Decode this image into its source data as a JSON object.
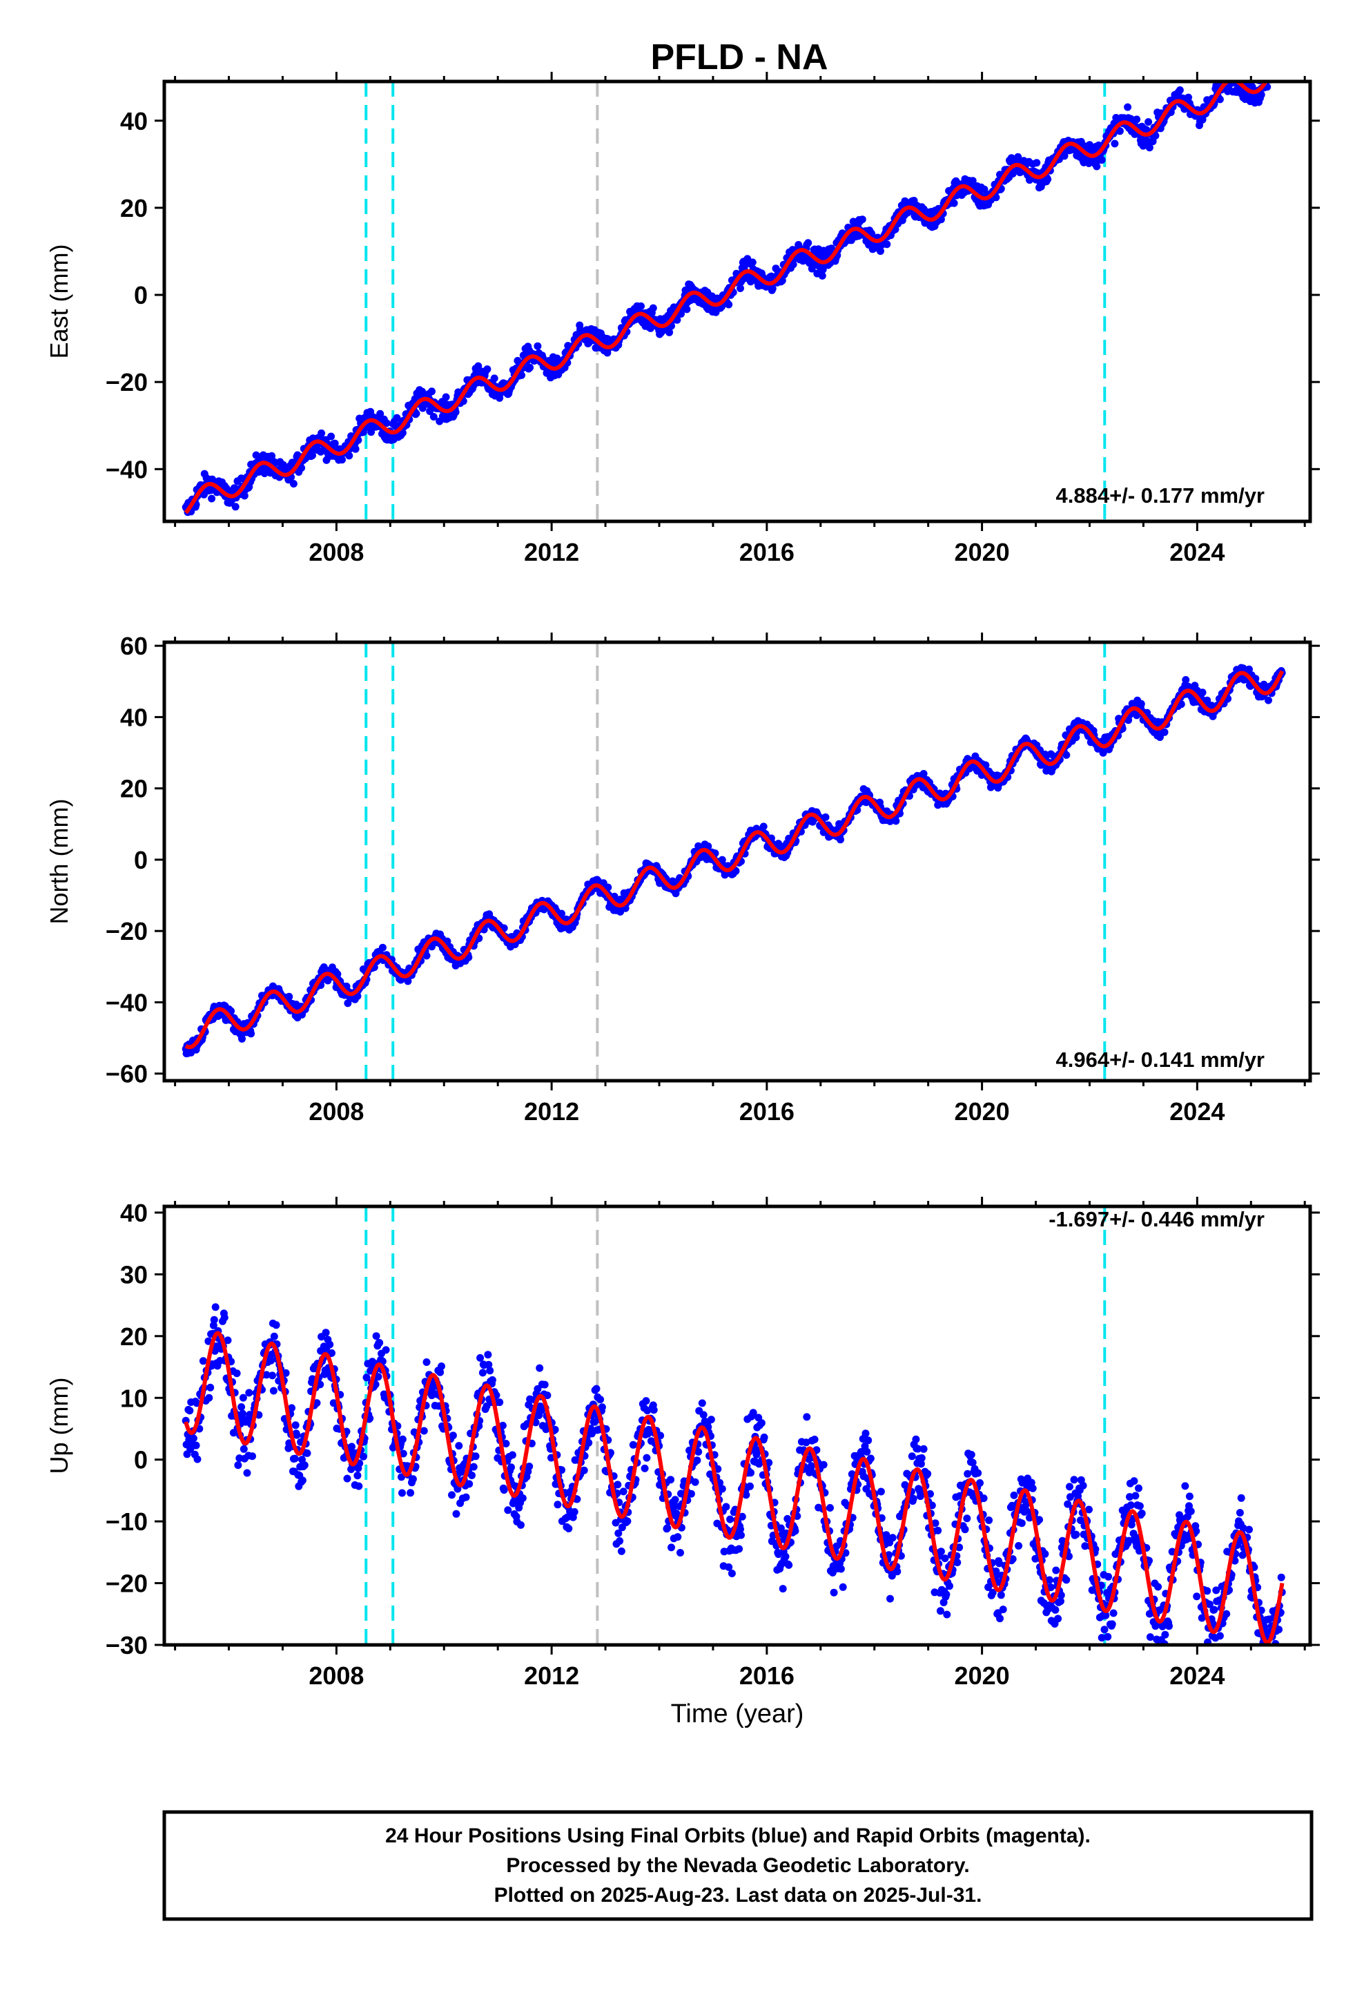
{
  "title": "PFLD - NA",
  "footer": {
    "line1": "24 Hour Positions Using Final Orbits (blue) and Rapid Orbits (magenta).",
    "line2": "Processed by the Nevada Geodetic Laboratory.",
    "line3": "Plotted on 2025-Aug-23. Last data on 2025-Jul-31."
  },
  "colors": {
    "final_orbits": "#0000ff",
    "model_fit": "#ff0000",
    "equipment_change": "#00e5ee",
    "other_event": "#c0c0c0"
  },
  "chart_data": [
    {
      "type": "scatter",
      "panel": "east",
      "ylabel": "East (mm)",
      "xlabel": "",
      "xlim": [
        2004.8,
        2026.1
      ],
      "ylim": [
        -52,
        49
      ],
      "xticks": [
        2008,
        2012,
        2016,
        2020,
        2024
      ],
      "yticks": [
        -40,
        -20,
        0,
        20,
        40
      ],
      "rate_label": "4.884+/- 0.177 mm/yr",
      "trend": {
        "start_year": 2005.2,
        "start_value": -48,
        "rate": 4.884
      },
      "seasonal": {
        "amplitude": 2.5,
        "phase_year": 0.35
      },
      "scatter_noise": 1.8,
      "event_lines": [
        {
          "year": 2008.55,
          "kind": "equipment_change"
        },
        {
          "year": 2009.05,
          "kind": "equipment_change"
        },
        {
          "year": 2012.85,
          "kind": "other_event"
        },
        {
          "year": 2022.28,
          "kind": "equipment_change"
        }
      ]
    },
    {
      "type": "scatter",
      "panel": "north",
      "ylabel": "North (mm)",
      "xlabel": "",
      "xlim": [
        2004.8,
        2026.1
      ],
      "ylim": [
        -62,
        61
      ],
      "xticks": [
        2008,
        2012,
        2016,
        2020,
        2024
      ],
      "yticks": [
        -60,
        -40,
        -20,
        0,
        20,
        40,
        60
      ],
      "rate_label": "4.964+/- 0.141 mm/yr",
      "trend": {
        "start_year": 2005.2,
        "start_value": -49,
        "rate": 4.964
      },
      "seasonal": {
        "amplitude": 4.0,
        "phase_year": 0.55
      },
      "scatter_noise": 1.6,
      "event_lines": [
        {
          "year": 2008.55,
          "kind": "equipment_change"
        },
        {
          "year": 2009.05,
          "kind": "equipment_change"
        },
        {
          "year": 2012.85,
          "kind": "other_event"
        },
        {
          "year": 2022.28,
          "kind": "equipment_change"
        }
      ]
    },
    {
      "type": "scatter",
      "panel": "up",
      "ylabel": "Up (mm)",
      "xlabel": "Time (year)",
      "xlim": [
        2004.8,
        2026.1
      ],
      "ylim": [
        -30,
        41
      ],
      "xticks": [
        2008,
        2012,
        2016,
        2020,
        2024
      ],
      "yticks": [
        -30,
        -20,
        -10,
        0,
        10,
        20,
        30,
        40
      ],
      "rate_label": "-1.697+/- 0.446 mm/yr",
      "trend": {
        "start_year": 2005.2,
        "start_value": 13,
        "rate": -1.697
      },
      "seasonal": {
        "amplitude": 8.5,
        "phase_year": 0.55
      },
      "scatter_noise": 4.0,
      "event_lines": [
        {
          "year": 2008.55,
          "kind": "equipment_change"
        },
        {
          "year": 2009.05,
          "kind": "equipment_change"
        },
        {
          "year": 2012.85,
          "kind": "other_event"
        },
        {
          "year": 2022.28,
          "kind": "equipment_change"
        }
      ]
    }
  ]
}
